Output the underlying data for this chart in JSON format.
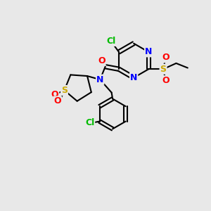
{
  "background_color": "#e8e8e8",
  "bond_color": "#000000",
  "atom_colors": {
    "C": "#000000",
    "N": "#0000ff",
    "O": "#ff0000",
    "S": "#ccaa00",
    "Cl": "#00bb00"
  },
  "figsize": [
    3.0,
    3.0
  ],
  "dpi": 100
}
